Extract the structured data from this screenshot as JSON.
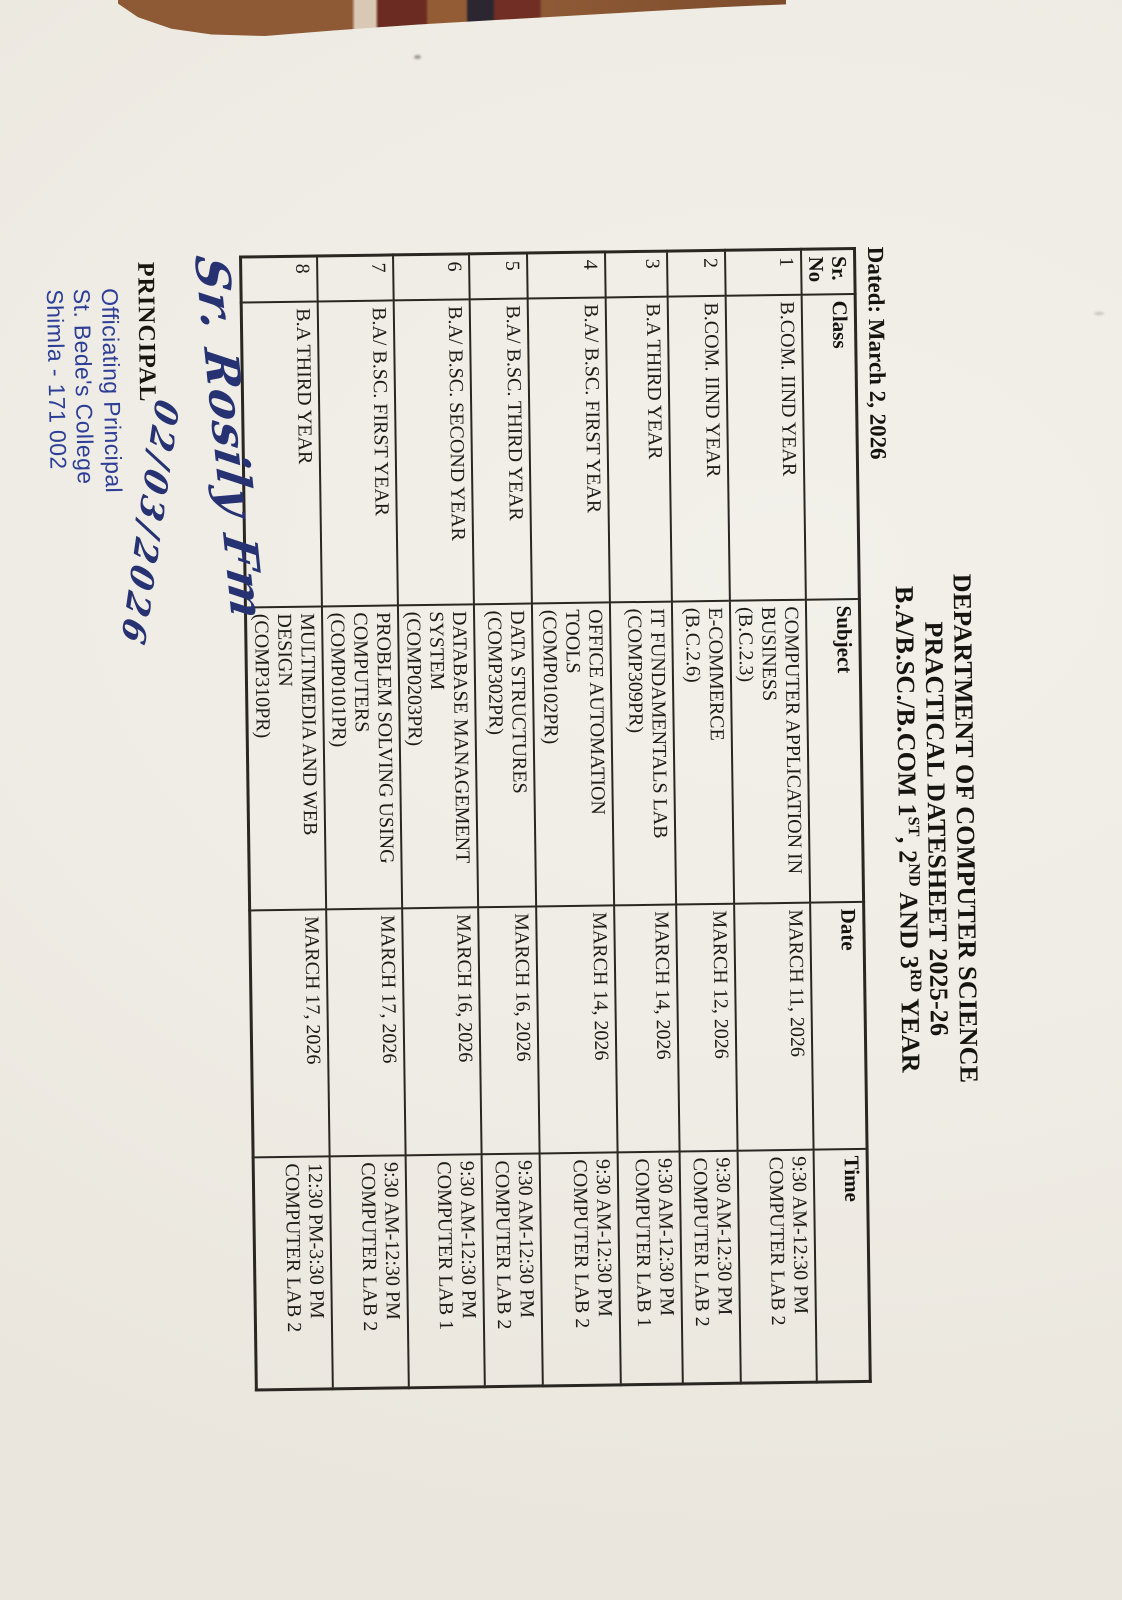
{
  "title": {
    "line1": "DEPARTMENT OF COMPUTER SCIENCE",
    "line2": "PRACTICAL DATESHEET 2025-26",
    "line3": {
      "p1": "B.A/B.SC./B.COM 1",
      "s1": "ST",
      "p2": ", 2",
      "s2": "ND",
      "p3": " AND 3",
      "s3": "RD",
      "p4": " YEAR"
    }
  },
  "dated_line": "Dated: March 2, 2026",
  "table": {
    "headers": {
      "sr1": "Sr.",
      "sr2": "No",
      "class": "Class",
      "subject": "Subject",
      "date": "Date",
      "time": "Time"
    },
    "rows": [
      {
        "sr": "1",
        "class": "B.COM. IIND YEAR",
        "subject_lines": [
          "COMPUTER APPLICATION IN",
          "BUSINESS",
          "(B.C.2.3)"
        ],
        "date": "MARCH 11, 2026",
        "time_lines": [
          "9:30 AM-12:30 PM",
          "COMPUTER LAB 2"
        ]
      },
      {
        "sr": "2",
        "class": "B.COM. IIND YEAR",
        "subject_lines": [
          "E-COMMERCE",
          "(B.C.2.6)"
        ],
        "date": "MARCH 12, 2026",
        "time_lines": [
          "9:30 AM-12:30 PM",
          "COMPUTER LAB 2"
        ]
      },
      {
        "sr": "3",
        "class": "B.A THIRD YEAR",
        "subject_lines": [
          "IT FUNDAMENTALS LAB",
          "(COMP309PR)"
        ],
        "date": "MARCH 14, 2026",
        "time_lines": [
          "9:30 AM-12:30 PM",
          "COMPUTER LAB 1"
        ]
      },
      {
        "sr": "4",
        "class": "B.A/ B.SC. FIRST YEAR",
        "subject_lines": [
          "OFFICE AUTOMATION",
          "TOOLS",
          "(COMP0102PR)"
        ],
        "date": "MARCH 14, 2026",
        "time_lines": [
          "9:30 AM-12:30 PM",
          "COMPUTER LAB 2"
        ]
      },
      {
        "sr": "5",
        "class": "B.A/ B.SC. THIRD YEAR",
        "subject_lines": [
          "DATA STRUCTURES",
          "(COMP302PR)"
        ],
        "date": "MARCH 16, 2026",
        "time_lines": [
          "9:30 AM-12:30 PM",
          "COMPUTER LAB 2"
        ]
      },
      {
        "sr": "6",
        "class": "B.A/ B.SC. SECOND YEAR",
        "subject_lines": [
          "DATABASE MANAGEMENT",
          "SYSTEM",
          "(COMP0203PR)"
        ],
        "date": "MARCH 16, 2026",
        "time_lines": [
          "9:30 AM-12:30 PM",
          "COMPUTER LAB 1"
        ]
      },
      {
        "sr": "7",
        "class": "B.A/ B.SC. FIRST YEAR",
        "subject_lines": [
          "PROBLEM SOLVING USING",
          "COMPUTERS",
          "(COMP0101PR)"
        ],
        "date": "MARCH 17, 2026",
        "time_lines": [
          "9:30 AM-12:30 PM",
          "COMPUTER LAB 2"
        ]
      },
      {
        "sr": "8",
        "class": "B.A THIRD YEAR",
        "subject_lines": [
          "MULTIMEDIA AND WEB",
          "DESIGN",
          "(COMP310PR)"
        ],
        "date": "MARCH 17, 2026",
        "time_lines": [
          "12:30 PM-3:30 PM",
          "COMPUTER LAB 2"
        ]
      }
    ]
  },
  "signature": {
    "script": "Sr. Rosily Fm",
    "handwritten_date": "02/03/2026",
    "principal_label": "PRINCIPAL",
    "stamp_line1": "Officiating Principal",
    "stamp_line2": "St. Bede's College",
    "stamp_line3": "Shimla - 171 002"
  },
  "ink_colors": {
    "blue_ink": "#263271",
    "stamp_blue": "#2c3e96",
    "text_black": "#1d1b17"
  }
}
